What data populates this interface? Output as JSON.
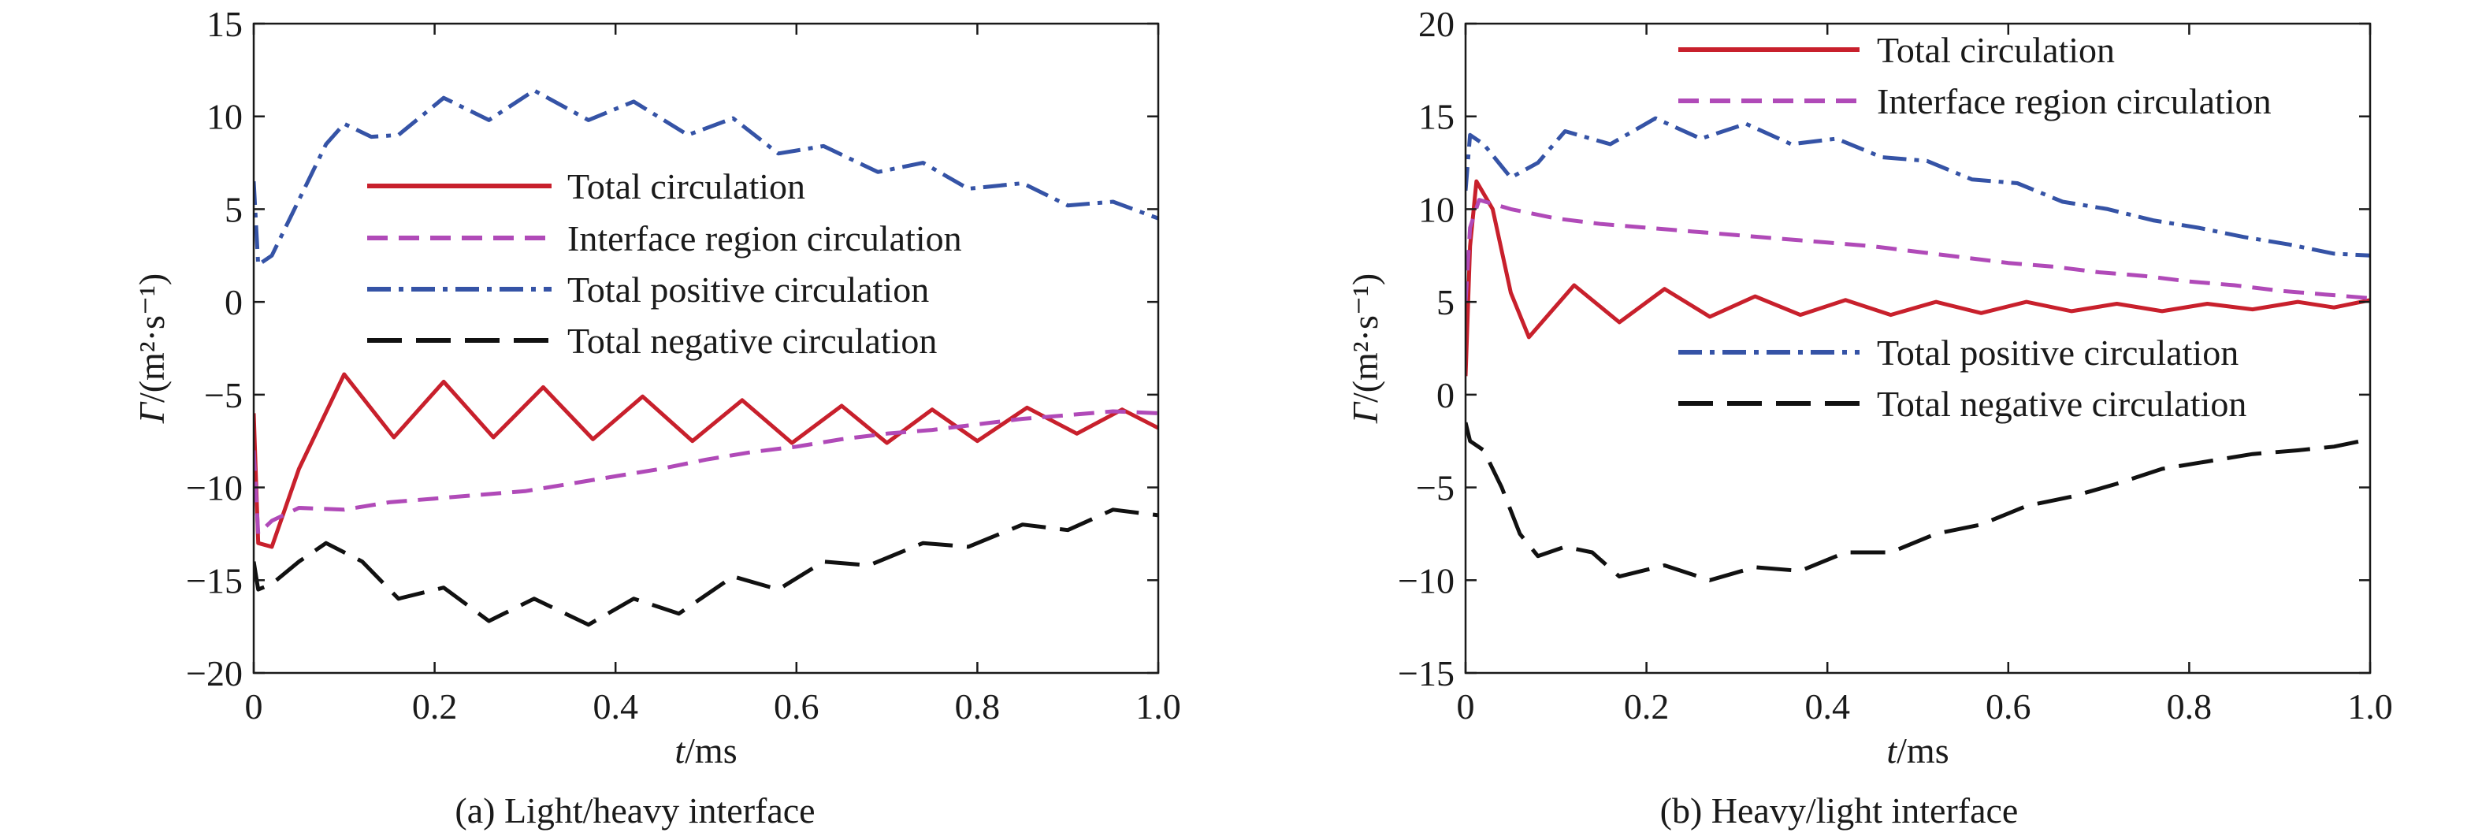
{
  "chart_data": [
    {
      "type": "line",
      "caption": "(a) Light/heavy interface",
      "xlabel_italic": "t",
      "xlabel_unit": "/ms",
      "ylabel_italic": "Γ",
      "ylabel_unit": "/(m²·s⁻¹)",
      "xlim": [
        0,
        1.0
      ],
      "ylim": [
        -20,
        15
      ],
      "x_ticks": [
        0,
        0.2,
        0.4,
        0.6,
        0.8,
        1.0
      ],
      "x_tick_labels": [
        "0",
        "0.2",
        "0.4",
        "0.6",
        "0.8",
        "1.0"
      ],
      "y_ticks": [
        -20,
        -15,
        -10,
        -5,
        0,
        5,
        10,
        15
      ],
      "y_tick_labels": [
        "−20",
        "−15",
        "−10",
        "−5",
        "0",
        "5",
        "10",
        "15"
      ],
      "grid": false,
      "legend_position": "center",
      "series": [
        {
          "name": "Total circulation",
          "color": "#c8202c",
          "style": "solid",
          "points": [
            [
              0,
              -6
            ],
            [
              0.005,
              -13
            ],
            [
              0.02,
              -13.2
            ],
            [
              0.05,
              -9
            ],
            [
              0.1,
              -3.9
            ],
            [
              0.155,
              -7.3
            ],
            [
              0.21,
              -4.3
            ],
            [
              0.265,
              -7.3
            ],
            [
              0.32,
              -4.6
            ],
            [
              0.375,
              -7.4
            ],
            [
              0.43,
              -5.1
            ],
            [
              0.485,
              -7.5
            ],
            [
              0.54,
              -5.3
            ],
            [
              0.595,
              -7.6
            ],
            [
              0.65,
              -5.6
            ],
            [
              0.7,
              -7.6
            ],
            [
              0.75,
              -5.8
            ],
            [
              0.8,
              -7.5
            ],
            [
              0.855,
              -5.7
            ],
            [
              0.91,
              -7.1
            ],
            [
              0.96,
              -5.8
            ],
            [
              1.0,
              -6.8
            ]
          ]
        },
        {
          "name": "Interface region circulation",
          "color": "#b04ab8",
          "style": "dashed",
          "points": [
            [
              0,
              -8
            ],
            [
              0.005,
              -12.5
            ],
            [
              0.02,
              -11.8
            ],
            [
              0.05,
              -11.1
            ],
            [
              0.1,
              -11.2
            ],
            [
              0.15,
              -10.8
            ],
            [
              0.2,
              -10.6
            ],
            [
              0.25,
              -10.4
            ],
            [
              0.3,
              -10.2
            ],
            [
              0.35,
              -9.8
            ],
            [
              0.4,
              -9.4
            ],
            [
              0.45,
              -9.0
            ],
            [
              0.5,
              -8.5
            ],
            [
              0.55,
              -8.1
            ],
            [
              0.6,
              -7.8
            ],
            [
              0.65,
              -7.4
            ],
            [
              0.7,
              -7.1
            ],
            [
              0.75,
              -6.9
            ],
            [
              0.8,
              -6.6
            ],
            [
              0.85,
              -6.3
            ],
            [
              0.9,
              -6.1
            ],
            [
              0.95,
              -5.9
            ],
            [
              1.0,
              -6.0
            ]
          ]
        },
        {
          "name": "Total positive circulation",
          "color": "#3553a6",
          "style": "dashdot",
          "points": [
            [
              0,
              6.5
            ],
            [
              0.005,
              2
            ],
            [
              0.02,
              2.5
            ],
            [
              0.05,
              5.5
            ],
            [
              0.08,
              8.5
            ],
            [
              0.1,
              9.6
            ],
            [
              0.13,
              8.9
            ],
            [
              0.16,
              9.0
            ],
            [
              0.21,
              11.0
            ],
            [
              0.26,
              9.8
            ],
            [
              0.31,
              11.4
            ],
            [
              0.37,
              9.8
            ],
            [
              0.42,
              10.8
            ],
            [
              0.48,
              9.0
            ],
            [
              0.53,
              9.9
            ],
            [
              0.58,
              8.0
            ],
            [
              0.63,
              8.4
            ],
            [
              0.69,
              7.0
            ],
            [
              0.74,
              7.5
            ],
            [
              0.79,
              6.1
            ],
            [
              0.85,
              6.4
            ],
            [
              0.9,
              5.2
            ],
            [
              0.95,
              5.4
            ],
            [
              1.0,
              4.5
            ]
          ]
        },
        {
          "name": "Total negative circulation",
          "color": "#111111",
          "style": "longdash",
          "points": [
            [
              0,
              -14
            ],
            [
              0.005,
              -15.5
            ],
            [
              0.02,
              -15.2
            ],
            [
              0.05,
              -14.0
            ],
            [
              0.08,
              -13.0
            ],
            [
              0.12,
              -14.0
            ],
            [
              0.16,
              -16.0
            ],
            [
              0.21,
              -15.4
            ],
            [
              0.26,
              -17.2
            ],
            [
              0.31,
              -16.0
            ],
            [
              0.37,
              -17.4
            ],
            [
              0.42,
              -16.0
            ],
            [
              0.47,
              -16.8
            ],
            [
              0.53,
              -14.8
            ],
            [
              0.58,
              -15.5
            ],
            [
              0.63,
              -14.0
            ],
            [
              0.68,
              -14.2
            ],
            [
              0.74,
              -13.0
            ],
            [
              0.79,
              -13.2
            ],
            [
              0.85,
              -12.0
            ],
            [
              0.9,
              -12.3
            ],
            [
              0.95,
              -11.2
            ],
            [
              1.0,
              -11.5
            ]
          ]
        }
      ]
    },
    {
      "type": "line",
      "caption": "(b) Heavy/light interface",
      "xlabel_italic": "t",
      "xlabel_unit": "/ms",
      "ylabel_italic": "Γ",
      "ylabel_unit": "/(m²·s⁻¹)",
      "xlim": [
        0,
        1.0
      ],
      "ylim": [
        -15,
        20
      ],
      "x_ticks": [
        0,
        0.2,
        0.4,
        0.6,
        0.8,
        1.0
      ],
      "x_tick_labels": [
        "0",
        "0.2",
        "0.4",
        "0.6",
        "0.8",
        "1.0"
      ],
      "y_ticks": [
        -15,
        -10,
        -5,
        0,
        5,
        10,
        15,
        20
      ],
      "y_tick_labels": [
        "−15",
        "−10",
        "−5",
        "0",
        "5",
        "10",
        "15",
        "20"
      ],
      "grid": false,
      "legend_position": "split: top-right and middle-right",
      "series": [
        {
          "name": "Total circulation",
          "color": "#c8202c",
          "style": "solid",
          "points": [
            [
              0,
              1
            ],
            [
              0.005,
              8
            ],
            [
              0.012,
              11.5
            ],
            [
              0.03,
              10
            ],
            [
              0.05,
              5.5
            ],
            [
              0.07,
              3.1
            ],
            [
              0.095,
              4.5
            ],
            [
              0.12,
              5.9
            ],
            [
              0.17,
              3.9
            ],
            [
              0.22,
              5.7
            ],
            [
              0.27,
              4.2
            ],
            [
              0.32,
              5.3
            ],
            [
              0.37,
              4.3
            ],
            [
              0.42,
              5.1
            ],
            [
              0.47,
              4.3
            ],
            [
              0.52,
              5.0
            ],
            [
              0.57,
              4.4
            ],
            [
              0.62,
              5.0
            ],
            [
              0.67,
              4.5
            ],
            [
              0.72,
              4.9
            ],
            [
              0.77,
              4.5
            ],
            [
              0.82,
              4.9
            ],
            [
              0.87,
              4.6
            ],
            [
              0.92,
              5.0
            ],
            [
              0.96,
              4.7
            ],
            [
              1.0,
              5.1
            ]
          ]
        },
        {
          "name": "Interface region circulation",
          "color": "#b04ab8",
          "style": "dashed",
          "points": [
            [
              0,
              5
            ],
            [
              0.005,
              9
            ],
            [
              0.015,
              10.5
            ],
            [
              0.05,
              10.0
            ],
            [
              0.1,
              9.5
            ],
            [
              0.15,
              9.2
            ],
            [
              0.2,
              9.0
            ],
            [
              0.25,
              8.8
            ],
            [
              0.3,
              8.6
            ],
            [
              0.35,
              8.4
            ],
            [
              0.4,
              8.2
            ],
            [
              0.45,
              8.0
            ],
            [
              0.5,
              7.7
            ],
            [
              0.55,
              7.4
            ],
            [
              0.6,
              7.1
            ],
            [
              0.65,
              6.9
            ],
            [
              0.7,
              6.6
            ],
            [
              0.75,
              6.4
            ],
            [
              0.8,
              6.1
            ],
            [
              0.85,
              5.9
            ],
            [
              0.9,
              5.6
            ],
            [
              0.95,
              5.4
            ],
            [
              1.0,
              5.2
            ]
          ]
        },
        {
          "name": "Total positive circulation",
          "color": "#3553a6",
          "style": "dashdot",
          "points": [
            [
              0,
              11
            ],
            [
              0.005,
              14
            ],
            [
              0.02,
              13.5
            ],
            [
              0.05,
              11.7
            ],
            [
              0.08,
              12.5
            ],
            [
              0.11,
              14.2
            ],
            [
              0.16,
              13.5
            ],
            [
              0.21,
              14.9
            ],
            [
              0.26,
              13.8
            ],
            [
              0.31,
              14.6
            ],
            [
              0.36,
              13.5
            ],
            [
              0.41,
              13.8
            ],
            [
              0.46,
              12.8
            ],
            [
              0.51,
              12.6
            ],
            [
              0.56,
              11.6
            ],
            [
              0.61,
              11.4
            ],
            [
              0.66,
              10.4
            ],
            [
              0.71,
              10.0
            ],
            [
              0.76,
              9.4
            ],
            [
              0.81,
              9.0
            ],
            [
              0.86,
              8.5
            ],
            [
              0.91,
              8.1
            ],
            [
              0.96,
              7.6
            ],
            [
              1.0,
              7.5
            ]
          ]
        },
        {
          "name": "Total negative circulation",
          "color": "#111111",
          "style": "longdash",
          "points": [
            [
              0,
              -1.5
            ],
            [
              0.005,
              -2.5
            ],
            [
              0.02,
              -3.0
            ],
            [
              0.04,
              -5.0
            ],
            [
              0.06,
              -7.5
            ],
            [
              0.08,
              -8.7
            ],
            [
              0.11,
              -8.2
            ],
            [
              0.14,
              -8.5
            ],
            [
              0.17,
              -9.8
            ],
            [
              0.22,
              -9.2
            ],
            [
              0.27,
              -10.0
            ],
            [
              0.32,
              -9.3
            ],
            [
              0.37,
              -9.5
            ],
            [
              0.42,
              -8.5
            ],
            [
              0.47,
              -8.5
            ],
            [
              0.52,
              -7.5
            ],
            [
              0.57,
              -7.0
            ],
            [
              0.62,
              -6.0
            ],
            [
              0.67,
              -5.5
            ],
            [
              0.72,
              -4.8
            ],
            [
              0.77,
              -4.0
            ],
            [
              0.82,
              -3.6
            ],
            [
              0.87,
              -3.2
            ],
            [
              0.92,
              -3.0
            ],
            [
              0.96,
              -2.8
            ],
            [
              1.0,
              -2.4
            ]
          ]
        }
      ]
    }
  ]
}
